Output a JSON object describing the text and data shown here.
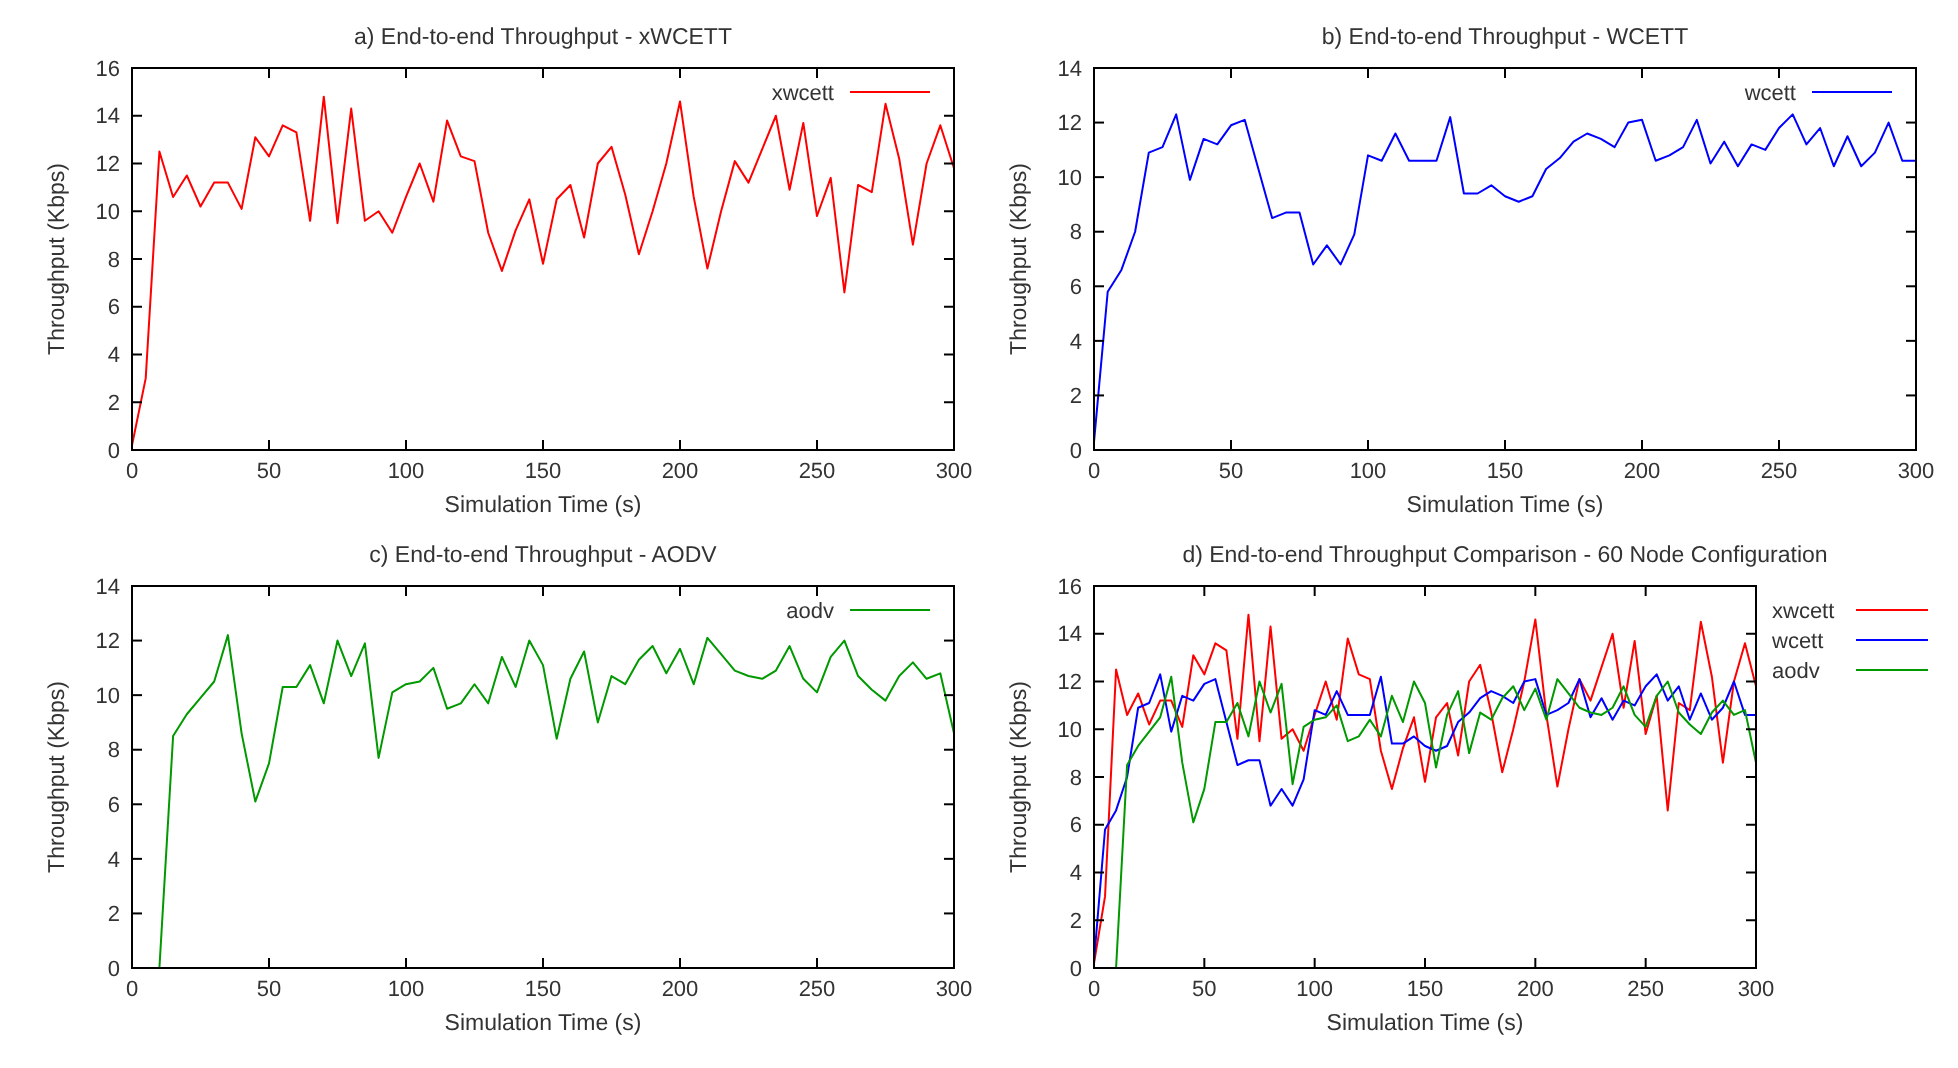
{
  "chart_data": [
    {
      "type": "line",
      "title": "a) End-to-end Throughput - xWCETT",
      "xlabel": "Simulation Time (s)",
      "ylabel": "Throughput (Kbps)",
      "xlim": [
        0,
        300
      ],
      "ylim": [
        0,
        16
      ],
      "xticks": [
        0,
        50,
        100,
        150,
        200,
        250,
        300
      ],
      "yticks": [
        0,
        2,
        4,
        6,
        8,
        10,
        12,
        14,
        16
      ],
      "legend": "top right",
      "x": [
        0,
        5,
        10,
        15,
        20,
        25,
        30,
        35,
        40,
        45,
        50,
        55,
        60,
        65,
        70,
        75,
        80,
        85,
        90,
        95,
        100,
        105,
        110,
        115,
        120,
        125,
        130,
        135,
        140,
        145,
        150,
        155,
        160,
        165,
        170,
        175,
        180,
        185,
        190,
        195,
        200,
        205,
        210,
        215,
        220,
        225,
        230,
        235,
        240,
        245,
        250,
        255,
        260,
        265,
        270,
        275,
        280,
        285,
        290,
        295,
        300
      ],
      "series": [
        {
          "name": "xwcett",
          "color": "#ff0000",
          "values": [
            0.2,
            3,
            12.5,
            10.6,
            11.5,
            10.2,
            11.2,
            11.2,
            10.1,
            13.1,
            12.3,
            13.6,
            13.3,
            9.6,
            14.8,
            9.5,
            14.3,
            9.6,
            10,
            9.1,
            10.6,
            12,
            10.4,
            13.8,
            12.3,
            12.1,
            9.1,
            7.5,
            9.2,
            10.5,
            7.8,
            10.5,
            11.1,
            8.9,
            12,
            12.7,
            10.7,
            8.2,
            10,
            12,
            14.6,
            10.6,
            7.6,
            10,
            12.1,
            11.2,
            12.6,
            14,
            10.9,
            13.7,
            9.8,
            11.4,
            6.6,
            11.1,
            10.8,
            14.5,
            12.2,
            8.6,
            12,
            13.6,
            11.8
          ]
        }
      ]
    },
    {
      "type": "line",
      "title": "b) End-to-end Throughput - WCETT",
      "xlabel": "Simulation Time (s)",
      "ylabel": "Throughput (Kbps)",
      "xlim": [
        0,
        300
      ],
      "ylim": [
        0,
        14
      ],
      "xticks": [
        0,
        50,
        100,
        150,
        200,
        250,
        300
      ],
      "yticks": [
        0,
        2,
        4,
        6,
        8,
        10,
        12,
        14
      ],
      "legend": "top right",
      "x": [
        0,
        5,
        10,
        15,
        20,
        25,
        30,
        35,
        40,
        45,
        50,
        55,
        60,
        65,
        70,
        75,
        80,
        85,
        90,
        95,
        100,
        105,
        110,
        115,
        120,
        125,
        130,
        135,
        140,
        145,
        150,
        155,
        160,
        165,
        170,
        175,
        180,
        185,
        190,
        195,
        200,
        205,
        210,
        215,
        220,
        225,
        230,
        235,
        240,
        245,
        250,
        255,
        260,
        265,
        270,
        275,
        280,
        285,
        290,
        295,
        300
      ],
      "series": [
        {
          "name": "wcett",
          "color": "#0000ff",
          "values": [
            0.3,
            5.8,
            6.6,
            8,
            10.9,
            11.1,
            12.3,
            9.9,
            11.4,
            11.2,
            11.9,
            12.1,
            10.3,
            8.5,
            8.7,
            8.7,
            6.8,
            7.5,
            6.8,
            7.9,
            10.8,
            10.6,
            11.6,
            10.6,
            10.6,
            10.6,
            12.2,
            9.4,
            9.4,
            9.7,
            9.3,
            9.1,
            9.3,
            10.3,
            10.7,
            11.3,
            11.6,
            11.4,
            11.1,
            12,
            12.1,
            10.6,
            10.8,
            11.1,
            12.1,
            10.5,
            11.3,
            10.4,
            11.2,
            11,
            11.8,
            12.3,
            11.2,
            11.8,
            10.4,
            11.5,
            10.4,
            10.9,
            12,
            10.6,
            10.6
          ]
        }
      ]
    },
    {
      "type": "line",
      "title": "c) End-to-end Throughput - AODV",
      "xlabel": "Simulation Time (s)",
      "ylabel": "Throughput (Kbps)",
      "xlim": [
        0,
        300
      ],
      "ylim": [
        0,
        14
      ],
      "xticks": [
        0,
        50,
        100,
        150,
        200,
        250,
        300
      ],
      "yticks": [
        0,
        2,
        4,
        6,
        8,
        10,
        12,
        14
      ],
      "legend": "top right",
      "series": [
        {
          "name": "aodv",
          "color": "#009900",
          "x": [
            10,
            15,
            20,
            25,
            30,
            35,
            40,
            45,
            50,
            55,
            60,
            65,
            70,
            75,
            80,
            85,
            90,
            95,
            100,
            105,
            110,
            115,
            120,
            125,
            130,
            135,
            140,
            145,
            150,
            155,
            160,
            165,
            170,
            175,
            180,
            185,
            190,
            195,
            200,
            205,
            210,
            215,
            220,
            225,
            230,
            235,
            240,
            245,
            250,
            255,
            260,
            265,
            270,
            275,
            280,
            285,
            290,
            295,
            300
          ],
          "values": [
            0,
            8.5,
            9.3,
            9.9,
            10.5,
            12.2,
            8.6,
            6.1,
            7.5,
            10.3,
            10.3,
            11.1,
            9.7,
            12,
            10.7,
            11.9,
            7.7,
            10.1,
            10.4,
            10.5,
            11,
            9.5,
            9.7,
            10.4,
            9.7,
            11.4,
            10.3,
            12,
            11.1,
            8.4,
            10.6,
            11.6,
            9,
            10.7,
            10.4,
            11.3,
            11.8,
            10.8,
            11.7,
            10.4,
            12.1,
            11.5,
            10.9,
            10.7,
            10.6,
            10.9,
            11.8,
            10.6,
            10.1,
            11.4,
            12,
            10.7,
            10.2,
            9.8,
            10.7,
            11.2,
            10.6,
            10.8,
            8.6
          ]
        }
      ]
    },
    {
      "type": "line",
      "title": "d) End-to-end Throughput Comparison - 60 Node Configuration",
      "xlabel": "Simulation Time (s)",
      "ylabel": "Throughput (Kbps)",
      "xlim": [
        0,
        300
      ],
      "ylim": [
        0,
        16
      ],
      "xticks": [
        0,
        50,
        100,
        150,
        200,
        250,
        300
      ],
      "yticks": [
        0,
        2,
        4,
        6,
        8,
        10,
        12,
        14,
        16
      ],
      "legend": "right",
      "x": [
        0,
        5,
        10,
        15,
        20,
        25,
        30,
        35,
        40,
        45,
        50,
        55,
        60,
        65,
        70,
        75,
        80,
        85,
        90,
        95,
        100,
        105,
        110,
        115,
        120,
        125,
        130,
        135,
        140,
        145,
        150,
        155,
        160,
        165,
        170,
        175,
        180,
        185,
        190,
        195,
        200,
        205,
        210,
        215,
        220,
        225,
        230,
        235,
        240,
        245,
        250,
        255,
        260,
        265,
        270,
        275,
        280,
        285,
        290,
        295,
        300
      ],
      "series": [
        {
          "name": "xwcett",
          "color": "#ff0000",
          "values": [
            0.2,
            3,
            12.5,
            10.6,
            11.5,
            10.2,
            11.2,
            11.2,
            10.1,
            13.1,
            12.3,
            13.6,
            13.3,
            9.6,
            14.8,
            9.5,
            14.3,
            9.6,
            10,
            9.1,
            10.6,
            12,
            10.4,
            13.8,
            12.3,
            12.1,
            9.1,
            7.5,
            9.2,
            10.5,
            7.8,
            10.5,
            11.1,
            8.9,
            12,
            12.7,
            10.7,
            8.2,
            10,
            12,
            14.6,
            10.6,
            7.6,
            10,
            12.1,
            11.2,
            12.6,
            14,
            10.9,
            13.7,
            9.8,
            11.4,
            6.6,
            11.1,
            10.8,
            14.5,
            12.2,
            8.6,
            12,
            13.6,
            11.8
          ]
        },
        {
          "name": "wcett",
          "color": "#0000ff",
          "values": [
            0.3,
            5.8,
            6.6,
            8,
            10.9,
            11.1,
            12.3,
            9.9,
            11.4,
            11.2,
            11.9,
            12.1,
            10.3,
            8.5,
            8.7,
            8.7,
            6.8,
            7.5,
            6.8,
            7.9,
            10.8,
            10.6,
            11.6,
            10.6,
            10.6,
            10.6,
            12.2,
            9.4,
            9.4,
            9.7,
            9.3,
            9.1,
            9.3,
            10.3,
            10.7,
            11.3,
            11.6,
            11.4,
            11.1,
            12,
            12.1,
            10.6,
            10.8,
            11.1,
            12.1,
            10.5,
            11.3,
            10.4,
            11.2,
            11,
            11.8,
            12.3,
            11.2,
            11.8,
            10.4,
            11.5,
            10.4,
            10.9,
            12,
            10.6,
            10.6
          ]
        },
        {
          "name": "aodv",
          "color": "#009900",
          "x": [
            10,
            15,
            20,
            25,
            30,
            35,
            40,
            45,
            50,
            55,
            60,
            65,
            70,
            75,
            80,
            85,
            90,
            95,
            100,
            105,
            110,
            115,
            120,
            125,
            130,
            135,
            140,
            145,
            150,
            155,
            160,
            165,
            170,
            175,
            180,
            185,
            190,
            195,
            200,
            205,
            210,
            215,
            220,
            225,
            230,
            235,
            240,
            245,
            250,
            255,
            260,
            265,
            270,
            275,
            280,
            285,
            290,
            295,
            300
          ],
          "values": [
            0,
            8.5,
            9.3,
            9.9,
            10.5,
            12.2,
            8.6,
            6.1,
            7.5,
            10.3,
            10.3,
            11.1,
            9.7,
            12,
            10.7,
            11.9,
            7.7,
            10.1,
            10.4,
            10.5,
            11,
            9.5,
            9.7,
            10.4,
            9.7,
            11.4,
            10.3,
            12,
            11.1,
            8.4,
            10.6,
            11.6,
            9,
            10.7,
            10.4,
            11.3,
            11.8,
            10.8,
            11.7,
            10.4,
            12.1,
            11.5,
            10.9,
            10.7,
            10.6,
            10.9,
            11.8,
            10.6,
            10.1,
            11.4,
            12,
            10.7,
            10.2,
            9.8,
            10.7,
            11.2,
            10.6,
            10.8,
            8.6
          ]
        }
      ]
    }
  ]
}
